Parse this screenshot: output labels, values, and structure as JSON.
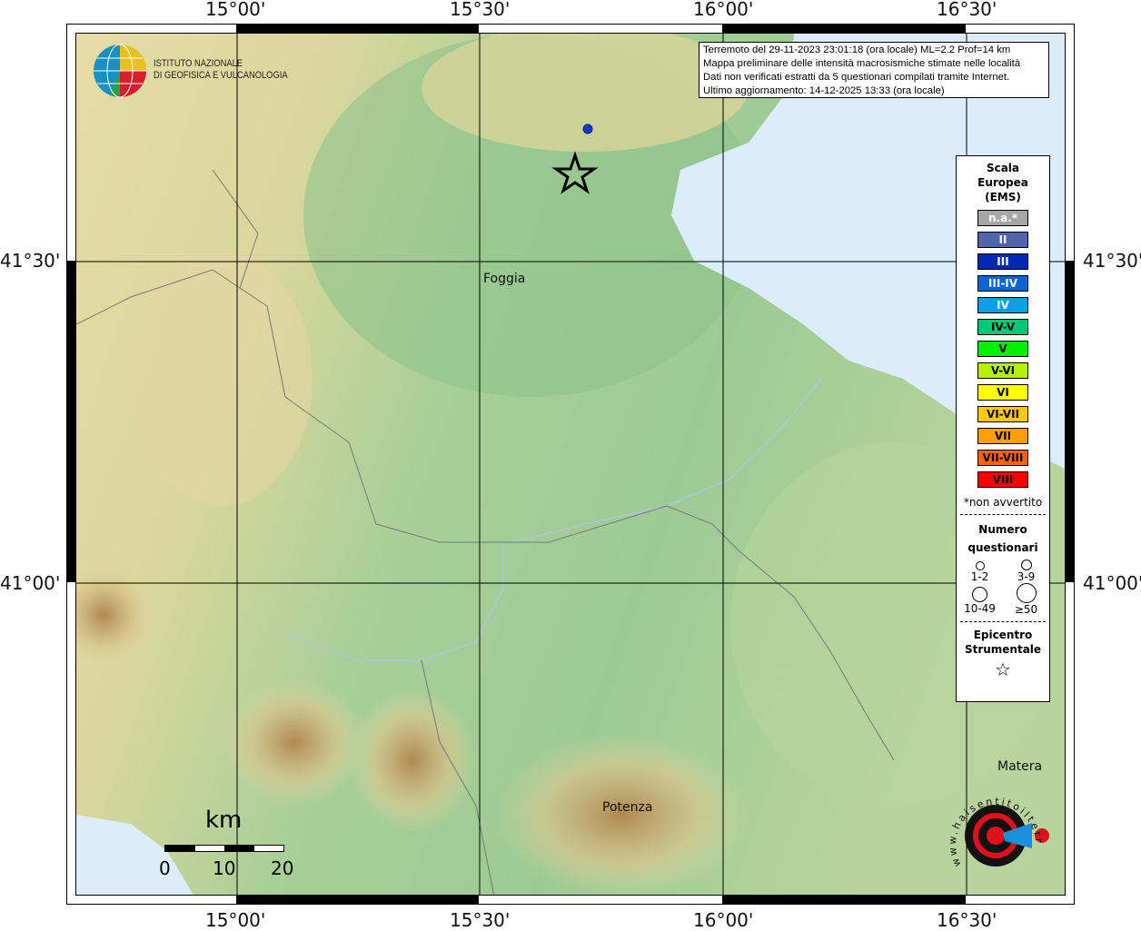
{
  "grid": {
    "lon_labels": [
      "15°00'",
      "15°30'",
      "16°00'",
      "16°30'"
    ],
    "lat_labels": [
      "41°30'",
      "41°00'"
    ]
  },
  "logo": {
    "line1": "ISTITUTO NAZIONALE",
    "line2": "DI GEOFISICA E VULCANOLOGIA"
  },
  "info": {
    "line1": "Terremoto del 29-11-2023 23:01:18 (ora locale) ML=2.2 Prof=14 km",
    "line2": "Mappa preliminare delle intensità macrosismiche stimate nelle località",
    "line3": "Dati non verificati estratti da 5 questionari compilati tramite Internet.",
    "line4": "Ultimo aggiornamento: 14-12-2025 13:33 (ora locale)"
  },
  "places": {
    "foggia": "Foggia",
    "potenza": "Potenza",
    "matera": "Matera"
  },
  "legend": {
    "title1": "Scala",
    "title2": "Europea",
    "title3": "(EMS)",
    "classes": [
      {
        "label": "n.a.*",
        "color": "#a6a6a6",
        "text": "#ffffff"
      },
      {
        "label": "II",
        "color": "#4f64aa",
        "text": "#ffffff"
      },
      {
        "label": "III",
        "color": "#0028b4",
        "text": "#ffffff"
      },
      {
        "label": "III-IV",
        "color": "#0a64d2",
        "text": "#ffffff"
      },
      {
        "label": "IV",
        "color": "#0aa0e6",
        "text": "#ffffff"
      },
      {
        "label": "IV-V",
        "color": "#00c878",
        "text": "#000000"
      },
      {
        "label": "V",
        "color": "#00f000",
        "text": "#000000"
      },
      {
        "label": "V-VI",
        "color": "#b4f000",
        "text": "#000000"
      },
      {
        "label": "VI",
        "color": "#ffff00",
        "text": "#000000"
      },
      {
        "label": "VI-VII",
        "color": "#ffc800",
        "text": "#000000"
      },
      {
        "label": "VII",
        "color": "#ffa000",
        "text": "#000000"
      },
      {
        "label": "VII-VIII",
        "color": "#ff6400",
        "text": "#000000"
      },
      {
        "label": "VIII",
        "color": "#ff0000",
        "text": "#000000"
      }
    ],
    "note": "*non avvertito",
    "count_title1": "Numero",
    "count_title2": "questionari",
    "counts": [
      "1-2",
      "3-9",
      "10-49",
      "≥50"
    ],
    "epi_title1": "Epicentro",
    "epi_title2": "Strumentale"
  },
  "scalebar": {
    "unit": "km",
    "ticks": [
      "0",
      "10",
      "20"
    ]
  },
  "badge": {
    "text": "www.haisentitoilterremoto.it"
  },
  "colors": {
    "sea": "#dcecfa",
    "land_low": "#9cc995",
    "land_high": "#c9a86a",
    "felt_point": "#0a3cc8"
  }
}
